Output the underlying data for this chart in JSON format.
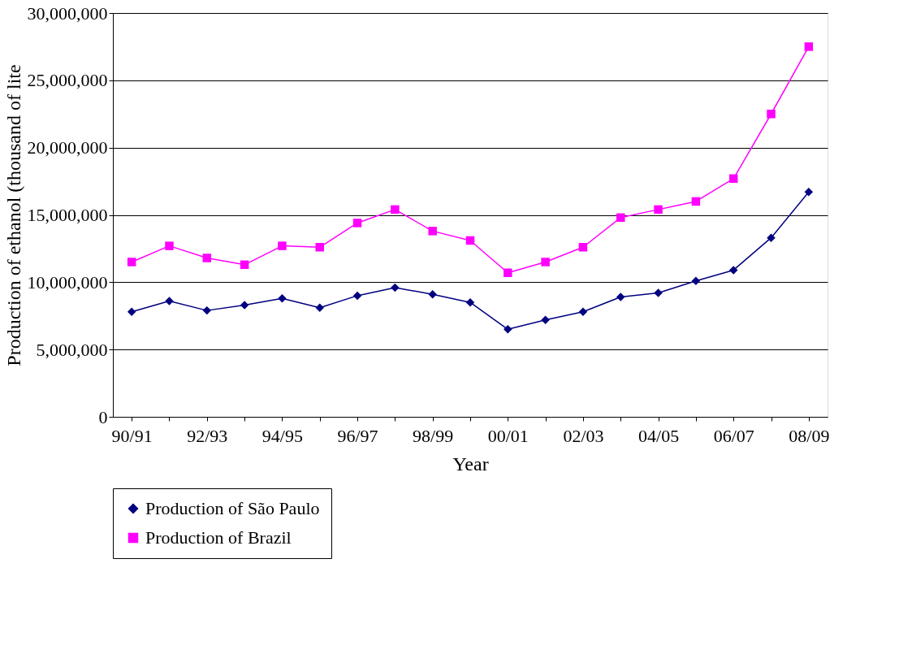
{
  "chart_data": {
    "type": "line",
    "xlabel": "Year",
    "ylabel": "Production of ethanol (thousand of lite",
    "categories": [
      "90/91",
      null,
      "92/93",
      null,
      "94/95",
      null,
      "96/97",
      null,
      "98/99",
      null,
      "00/01",
      null,
      "02/03",
      null,
      "04/05",
      null,
      "06/07",
      null,
      "08/09"
    ],
    "series": [
      {
        "name": "Production of São Paulo",
        "color": "#000080",
        "marker": "diamond",
        "values": [
          7800000,
          8600000,
          7900000,
          8300000,
          8800000,
          8100000,
          9000000,
          9600000,
          9100000,
          8500000,
          6500000,
          7200000,
          7800000,
          8900000,
          9200000,
          10100000,
          10900000,
          13300000,
          16700000
        ]
      },
      {
        "name": "Production of Brazil",
        "color": "#ff00ff",
        "marker": "square",
        "values": [
          11500000,
          12700000,
          11800000,
          11300000,
          12700000,
          12600000,
          14400000,
          15400000,
          13800000,
          13100000,
          10700000,
          11500000,
          12600000,
          14800000,
          15400000,
          16000000,
          17700000,
          22500000,
          27500000
        ]
      }
    ],
    "ylim": [
      0,
      30000000
    ],
    "yticks": [
      0,
      {
        "value": 5000000,
        "label": "5,000,000"
      },
      {
        "value": 10000000,
        "label": "10,000,000"
      },
      {
        "value": 15000000,
        "label": "15,000,000"
      },
      {
        "value": 20000000,
        "label": "20,000,000"
      },
      {
        "value": 25000000,
        "label": "25,000,000"
      },
      {
        "value": 30000000,
        "label": "30,000,000"
      }
    ],
    "grid": "y",
    "legend": "bottom",
    "line_style": "solid"
  }
}
